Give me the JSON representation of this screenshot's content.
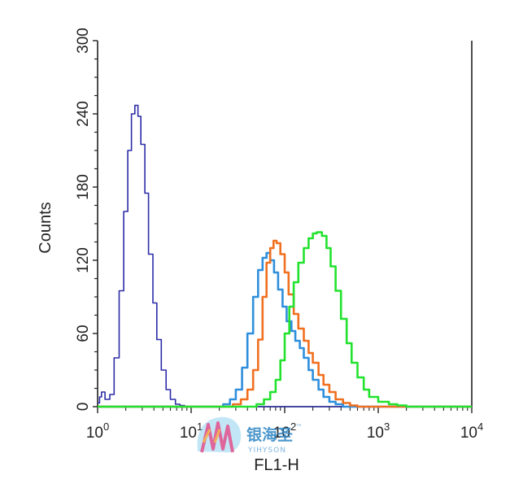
{
  "chart_data": {
    "type": "line",
    "title": "",
    "xlabel": "FL1-H",
    "ylabel": "Counts",
    "x_scale": "log",
    "xlim": [
      1,
      10000
    ],
    "ylim": [
      0,
      300
    ],
    "x_ticks": [
      {
        "base": "10",
        "exp": "0"
      },
      {
        "base": "10",
        "exp": "1"
      },
      {
        "base": "10",
        "exp": "2"
      },
      {
        "base": "10",
        "exp": "3"
      },
      {
        "base": "10",
        "exp": "4"
      }
    ],
    "y_ticks": [
      "0",
      "60",
      "120",
      "180",
      "240",
      "300"
    ],
    "grid": false,
    "legend": "none",
    "series": [
      {
        "color": "#2c2ca8",
        "x": [
          1.0,
          1.05,
          1.1,
          1.2,
          1.35,
          1.5,
          1.7,
          1.9,
          2.1,
          2.3,
          2.5,
          2.7,
          2.9,
          3.2,
          3.5,
          3.9,
          4.3,
          4.8,
          5.4,
          6.0,
          6.8,
          7.6,
          8.5,
          10,
          20,
          100,
          1000,
          10000
        ],
        "y": [
          3,
          8,
          12,
          6,
          10,
          40,
          95,
          160,
          210,
          240,
          247,
          238,
          215,
          175,
          125,
          85,
          55,
          30,
          14,
          6,
          2,
          1,
          0,
          0,
          0,
          0,
          0,
          0
        ]
      },
      {
        "color": "#2f8fdc",
        "x": [
          1,
          10,
          18,
          22,
          26,
          30,
          35,
          40,
          46,
          52,
          58,
          64,
          70,
          77,
          85,
          95,
          105,
          118,
          130,
          145,
          160,
          180,
          200,
          230,
          260,
          300,
          350,
          420,
          500,
          1000,
          10000
        ],
        "y": [
          0,
          0,
          0,
          2,
          6,
          14,
          32,
          60,
          90,
          112,
          122,
          126,
          120,
          110,
          96,
          82,
          70,
          62,
          54,
          48,
          40,
          30,
          22,
          14,
          8,
          4,
          2,
          0,
          0,
          0,
          0
        ]
      },
      {
        "color": "#f07020",
        "x": [
          1,
          10,
          22,
          28,
          34,
          40,
          46,
          52,
          58,
          64,
          70,
          76,
          82,
          90,
          100,
          110,
          125,
          140,
          160,
          180,
          200,
          230,
          260,
          300,
          350,
          420,
          500,
          600,
          1000,
          10000
        ],
        "y": [
          0,
          0,
          0,
          2,
          6,
          14,
          30,
          55,
          90,
          118,
          130,
          136,
          134,
          125,
          110,
          92,
          76,
          64,
          54,
          44,
          36,
          26,
          18,
          12,
          6,
          3,
          1,
          0,
          0,
          0
        ]
      },
      {
        "color": "#22e22e",
        "x": [
          1,
          10,
          40,
          50,
          60,
          70,
          80,
          90,
          100,
          112,
          125,
          140,
          160,
          180,
          200,
          220,
          250,
          280,
          310,
          350,
          400,
          460,
          520,
          600,
          700,
          800,
          1000,
          1300,
          1600,
          2000,
          10000
        ],
        "y": [
          0,
          0,
          0,
          2,
          6,
          12,
          22,
          38,
          60,
          82,
          102,
          118,
          130,
          138,
          142,
          143,
          140,
          130,
          115,
          95,
          72,
          52,
          36,
          24,
          14,
          8,
          4,
          2,
          1,
          0,
          0
        ]
      }
    ]
  },
  "watermark": {
    "text": "银海圣",
    "sub": "YIHYSON",
    "tm": "™"
  }
}
